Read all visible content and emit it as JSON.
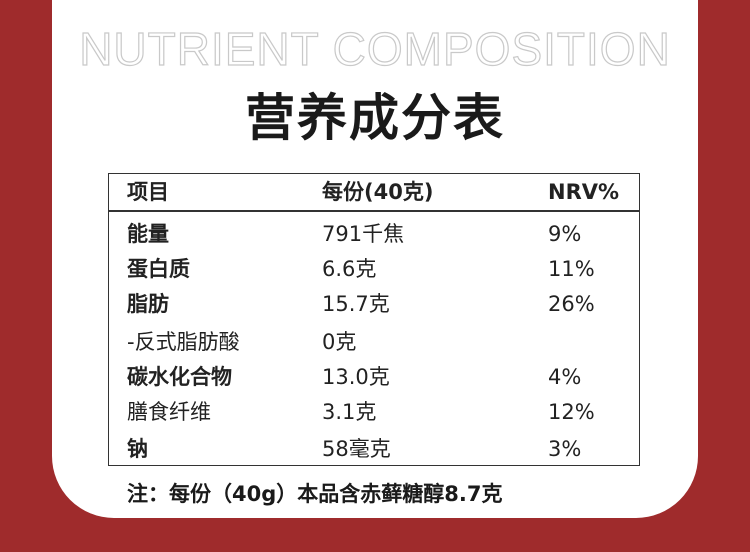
{
  "header": {
    "eyebrow": "NUTRIENT COMPOSITION",
    "title": "营养成分表"
  },
  "table": {
    "columns": [
      "项目",
      "每份(40克)",
      "NRV%"
    ],
    "rows": [
      {
        "cells": [
          "能量",
          "791千焦",
          "9%"
        ],
        "bold": true
      },
      {
        "cells": [
          "蛋白质",
          "6.6克",
          "11%"
        ],
        "bold": true
      },
      {
        "cells": [
          "脂肪",
          "15.7克",
          "26%"
        ],
        "bold": true
      },
      {
        "cells": [
          "-反式脂肪酸",
          "0克"
        ],
        "bold": false
      },
      {
        "cells": [
          "碳水化合物",
          "13.0克",
          "4%"
        ],
        "bold": true
      },
      {
        "cells": [
          "膳食纤维",
          "3.1克",
          "12%"
        ],
        "bold": false
      },
      {
        "cells": [
          "钠",
          "58毫克",
          "3%"
        ],
        "bold": true
      }
    ]
  },
  "note": "注：每份（40g）本品含赤藓糖醇8.7克"
}
